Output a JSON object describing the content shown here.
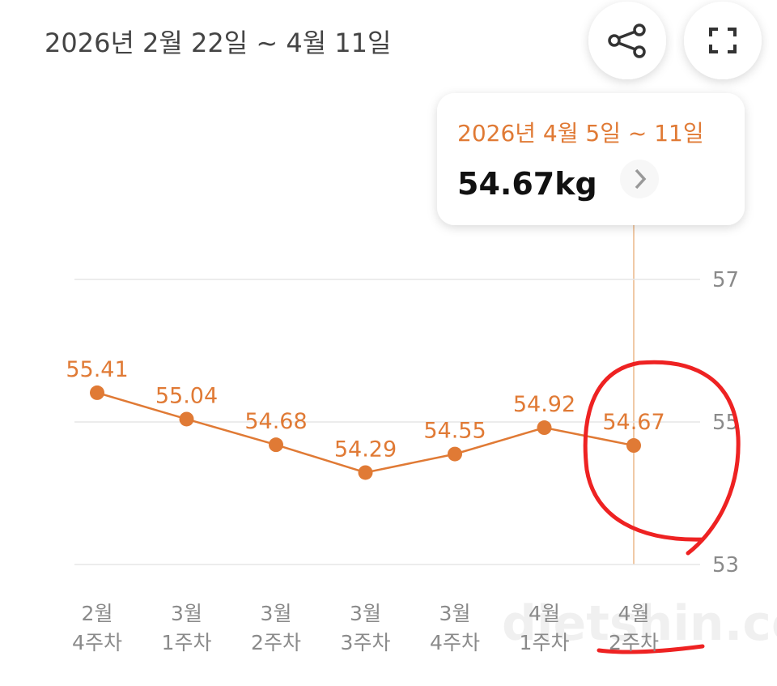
{
  "header": {
    "title": "2026년 2월 22일 ~ 4월 11일"
  },
  "tooltip": {
    "range": "2026년 4월 5일 ~ 11일",
    "value": "54.67kg"
  },
  "watermark": "dietshin.com",
  "chart_data": {
    "type": "line",
    "categories": [
      "2월\n4주차",
      "3월\n1주차",
      "3월\n2주차",
      "3월\n3주차",
      "3월\n4주차",
      "4월\n1주차",
      "4월\n2주차"
    ],
    "values": [
      55.41,
      55.04,
      54.68,
      54.29,
      54.55,
      54.92,
      54.67
    ],
    "color": "#e07a35",
    "ylim": [
      53,
      57
    ],
    "yticks": [
      53,
      55,
      57
    ],
    "grid": true
  }
}
